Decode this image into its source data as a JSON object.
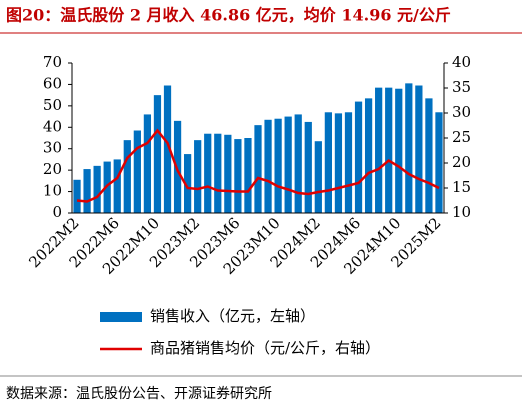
{
  "chart_data": {
    "type": "bar-line",
    "title": "图20：温氏股份 2 月收入 46.86 亿元，均价 14.96 元/公斤",
    "source": "数据来源：温氏股份公告、开源证券研究所",
    "categories": [
      "2022M2",
      null,
      null,
      null,
      "2022M6",
      null,
      null,
      null,
      "2022M10",
      null,
      null,
      null,
      "2023M2",
      null,
      null,
      null,
      "2023M6",
      null,
      null,
      null,
      "2023M10",
      null,
      null,
      null,
      "2024M2",
      null,
      null,
      null,
      "2024M6",
      null,
      null,
      null,
      "2024M10",
      null,
      null,
      null,
      "2025M2"
    ],
    "series": [
      {
        "name": "销售收入（亿元，左轴）",
        "color": "#0070c0",
        "type": "bar",
        "values": [
          15.5,
          20.5,
          22,
          24,
          25,
          34,
          38.5,
          46,
          55,
          59.5,
          43,
          27.5,
          34,
          37,
          37,
          36.5,
          34.5,
          35,
          41,
          43.5,
          44,
          45,
          46,
          42.5,
          33.5,
          47,
          46.5,
          47,
          52,
          53.5,
          58.5,
          58.5,
          58,
          60.5,
          59.5,
          53.5,
          47
        ]
      },
      {
        "name": "商品猪销售均价（元/公斤，右轴）",
        "color": "#e00000",
        "type": "line",
        "axis": "y2",
        "values": [
          12.5,
          12.3,
          13.2,
          15.5,
          17,
          21,
          23,
          24,
          26.5,
          24,
          18.5,
          15,
          14.8,
          15.3,
          14.5,
          14.4,
          14.3,
          14.3,
          17,
          16.4,
          15.3,
          14.7,
          14,
          13.8,
          14.2,
          14.5,
          15,
          15.5,
          16,
          18,
          18.8,
          20.5,
          19.3,
          17.8,
          16.8,
          16,
          15
        ]
      }
    ],
    "ylim": [
      0,
      70
    ],
    "yticks": [
      0,
      10,
      20,
      30,
      40,
      50,
      60,
      70
    ],
    "y2lim": [
      10,
      40
    ],
    "y2ticks": [
      10,
      15,
      20,
      25,
      30,
      35,
      40
    ]
  }
}
